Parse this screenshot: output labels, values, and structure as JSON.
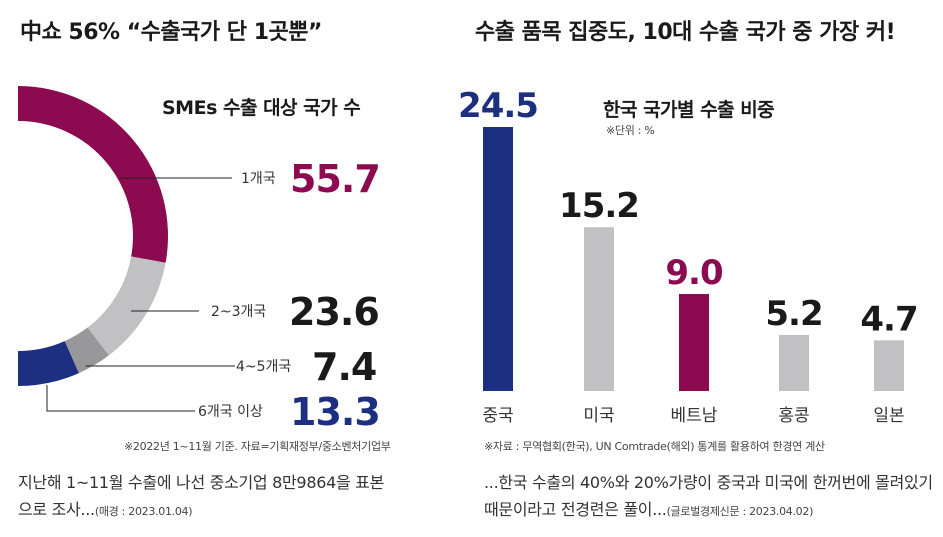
{
  "left": {
    "title": "中쇼 56% “수출국가 단 1곳뿐”",
    "subtitle": "SMEs 수출 대상 국가 수",
    "note": "※2022년 1~11월 기준. 자료=기획재정부/중소벤처기업부",
    "caption": "지난해 1~11월 수출에 나선 중소기업 8만9864을 표본으로 조사...",
    "caption_source": "(매경 :  2023.01.04)"
  },
  "right": {
    "title": "수출 품목 집중도, 10대 수출 국가 중 가장 커!",
    "subtitle": "한국 국가별 수출 비중",
    "unit": "※단위 : %",
    "note": "※자료 : 무역협회(한국), UN Comtrade(해외) 통계를 활용하여 한경연 계산",
    "caption": "...한국 수출의 40%와 20%가량이 중국과 미국에 한꺼번에 몰려있기 때문이라고 전경련은 풀이...",
    "caption_source": "(글로벌경제신문 : 2023.04.02)"
  },
  "colors": {
    "maroon": "#8b0a50",
    "navy": "#1c2f80",
    "gray": "#c1c1c3",
    "darkgray": "#98989a",
    "text": "#1a1a1a"
  },
  "chart_data": [
    {
      "type": "pie",
      "title": "SMEs 수출 대상 국가 수",
      "categories": [
        "1개국",
        "2~3개국",
        "4~5개국",
        "6개국 이상"
      ],
      "values": [
        55.7,
        23.6,
        7.4,
        13.3
      ],
      "value_labels": [
        "55.7",
        "23.6",
        "7.4",
        "13.3"
      ],
      "colors": [
        "#8b0a50",
        "#c1c1c3",
        "#98989a",
        "#1c2f80"
      ]
    },
    {
      "type": "bar",
      "title": "한국 국가별 수출 비중",
      "categories": [
        "중국",
        "미국",
        "베트남",
        "홍콩",
        "일본"
      ],
      "values": [
        24.5,
        15.2,
        9.0,
        5.2,
        4.7
      ],
      "value_labels": [
        "24.5",
        "15.2",
        "9.0",
        "5.2",
        "4.7"
      ],
      "colors": [
        "#1c2f80",
        "#c1c1c3",
        "#8b0a50",
        "#c1c1c3",
        "#c1c1c3"
      ],
      "ylim": [
        0,
        24.5
      ]
    }
  ]
}
